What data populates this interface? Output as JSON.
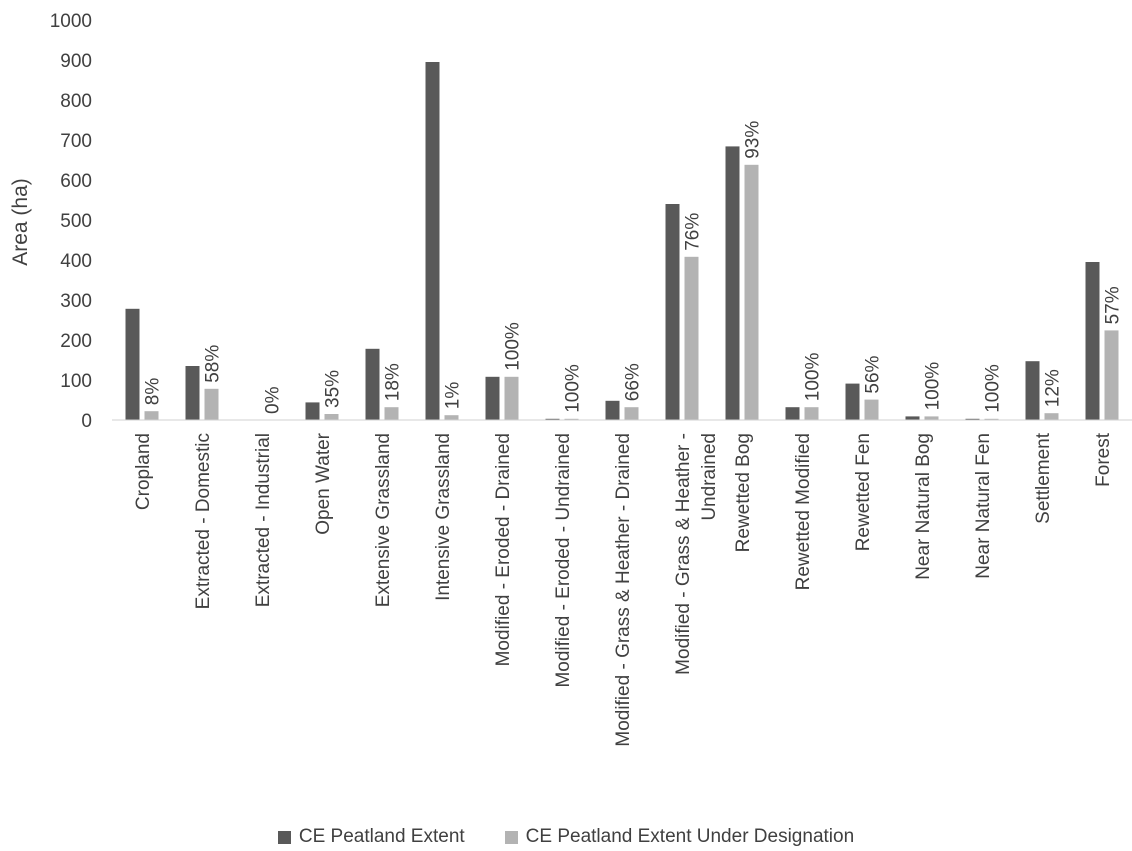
{
  "chart_data": {
    "type": "bar",
    "ylabel": "Area (ha)",
    "ylim": [
      0,
      1000
    ],
    "yticks": [
      "0",
      "100",
      "200",
      "300",
      "400",
      "500",
      "600",
      "700",
      "800",
      "900",
      "1000"
    ],
    "categories": [
      [
        "Cropland"
      ],
      [
        "Extracted - Domestic"
      ],
      [
        "Extracted - Industrial"
      ],
      [
        "Open Water"
      ],
      [
        "Extensive Grassland"
      ],
      [
        "Intensive Grassland"
      ],
      [
        "Modified - Eroded - Drained"
      ],
      [
        "Modified - Eroded - Undrained"
      ],
      [
        "Modified - Grass & Heather - Drained"
      ],
      [
        "Modified - Grass & Heather -",
        "Undrained"
      ],
      [
        "Rewetted Bog"
      ],
      [
        "Rewetted Modified"
      ],
      [
        "Rewetted Fen"
      ],
      [
        "Near Natural Bog"
      ],
      [
        "Near Natural Fen"
      ],
      [
        "Settlement"
      ],
      [
        "Forest"
      ]
    ],
    "series": [
      {
        "name": "CE Peatland Extent",
        "color": "#595959",
        "values": [
          278,
          135,
          0,
          44,
          178,
          895,
          108,
          3,
          48,
          540,
          684,
          32,
          91,
          9,
          3,
          147,
          395
        ]
      },
      {
        "name": "CE Peatland Extent Under Designation",
        "color": "#b3b3b3",
        "values": [
          22,
          78,
          0,
          15,
          32,
          12,
          108,
          3,
          32,
          408,
          638,
          32,
          51,
          9,
          3,
          17,
          224
        ]
      }
    ],
    "data_labels": [
      "8%",
      "58%",
      "0%",
      "35%",
      "18%",
      "1%",
      "100%",
      "100%",
      "66%",
      "76%",
      "93%",
      "100%",
      "56%",
      "100%",
      "100%",
      "12%",
      "57%"
    ],
    "grid": false,
    "legend": "bottom"
  }
}
